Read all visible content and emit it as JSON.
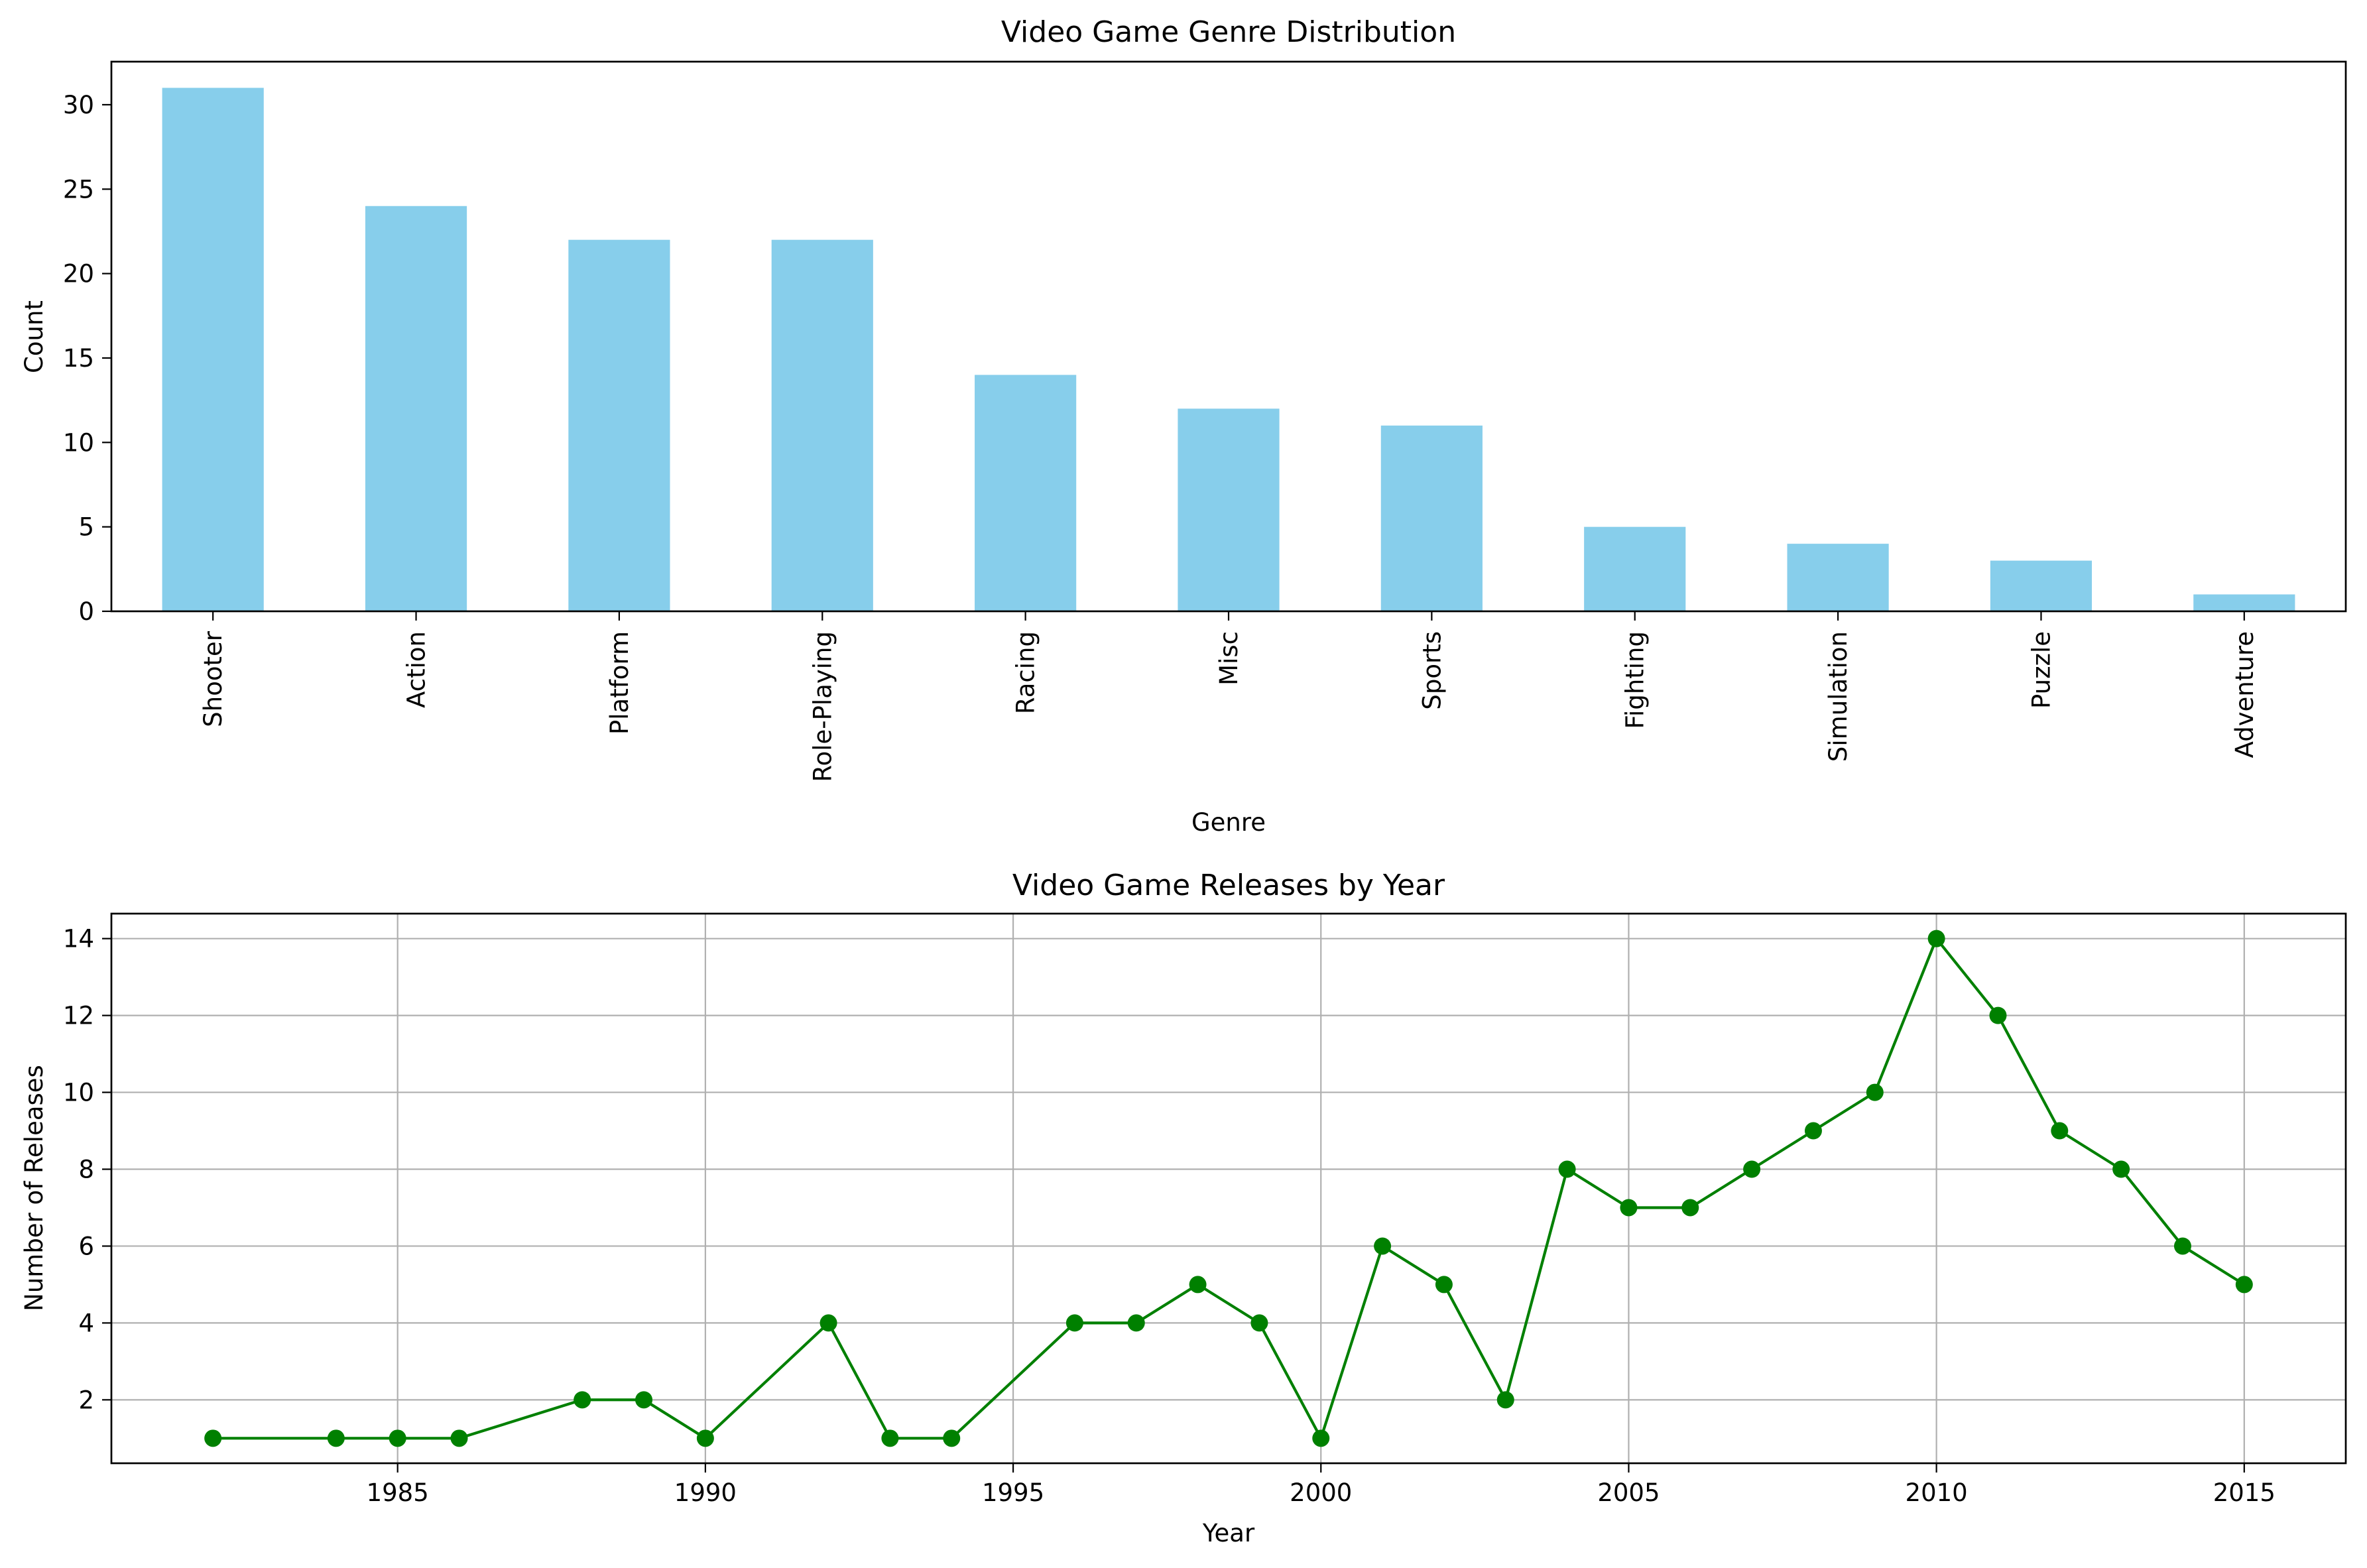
{
  "chart_data": [
    {
      "type": "bar",
      "title": "Video Game Genre Distribution",
      "xlabel": "Genre",
      "ylabel": "Count",
      "categories": [
        "Shooter",
        "Action",
        "Platform",
        "Role-Playing",
        "Racing",
        "Misc",
        "Sports",
        "Fighting",
        "Simulation",
        "Puzzle",
        "Adventure"
      ],
      "values": [
        31,
        24,
        22,
        22,
        14,
        12,
        11,
        5,
        4,
        3,
        1
      ],
      "ylim": [
        0,
        32.55
      ],
      "yticks": [
        0,
        5,
        10,
        15,
        20,
        25,
        30
      ],
      "grid": false,
      "color": "#87ceeb"
    },
    {
      "type": "line",
      "title": "Video Game Releases by Year",
      "xlabel": "Year",
      "ylabel": "Number of Releases",
      "x": [
        1982,
        1984,
        1985,
        1986,
        1988,
        1989,
        1990,
        1992,
        1993,
        1994,
        1996,
        1997,
        1998,
        1999,
        2000,
        2001,
        2002,
        2003,
        2004,
        2005,
        2006,
        2007,
        2008,
        2009,
        2010,
        2011,
        2012,
        2013,
        2014,
        2015
      ],
      "y": [
        1,
        1,
        1,
        1,
        2,
        2,
        1,
        4,
        1,
        1,
        4,
        4,
        5,
        4,
        1,
        6,
        5,
        2,
        8,
        7,
        7,
        8,
        9,
        10,
        14,
        12,
        9,
        8,
        6,
        5
      ],
      "xlim": [
        1980.35,
        2016.65
      ],
      "ylim": [
        0.35,
        14.65
      ],
      "xticks": [
        1985,
        1990,
        1995,
        2000,
        2005,
        2010,
        2015
      ],
      "yticks": [
        2,
        4,
        6,
        8,
        10,
        12,
        14
      ],
      "grid": true,
      "color": "#008000",
      "marker": "circle"
    }
  ]
}
